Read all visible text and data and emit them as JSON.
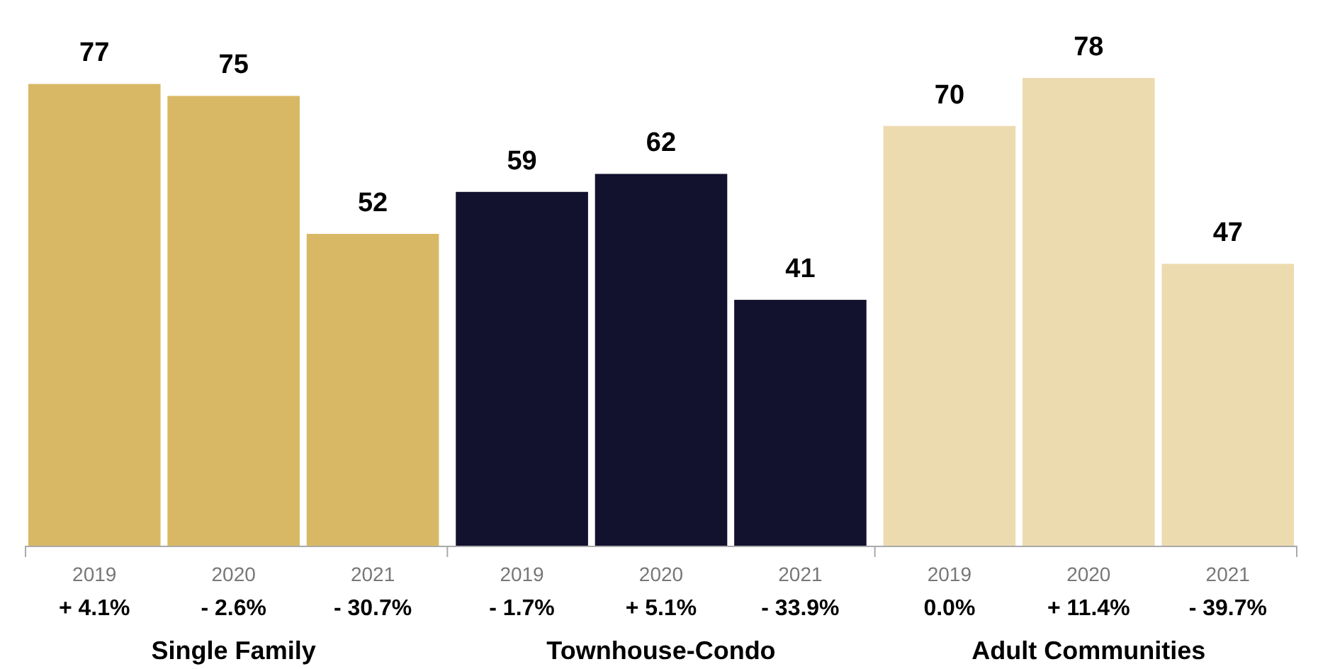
{
  "chart_data": [
    {
      "type": "bar",
      "categories": [
        "2019",
        "2020",
        "2021"
      ],
      "values": [
        77,
        75,
        52
      ],
      "color": "#d9b865",
      "data_labels": true,
      "xlabel": "Single Family",
      "annotations": [
        "+ 4.1%",
        "- 2.6%",
        "- 30.7%"
      ]
    },
    {
      "type": "bar",
      "categories": [
        "2019",
        "2020",
        "2021"
      ],
      "values": [
        59,
        62,
        41
      ],
      "color": "#12112e",
      "data_labels": true,
      "xlabel": "Townhouse-Condo",
      "annotations": [
        "- 1.7%",
        "+ 5.1%",
        "- 33.9%"
      ]
    },
    {
      "type": "bar",
      "categories": [
        "2019",
        "2020",
        "2021"
      ],
      "values": [
        70,
        78,
        47
      ],
      "color": "#eddbb0",
      "data_labels": true,
      "xlabel": "Adult Communities",
      "annotations": [
        "0.0%",
        "+ 11.4%",
        "- 39.7%"
      ]
    }
  ]
}
